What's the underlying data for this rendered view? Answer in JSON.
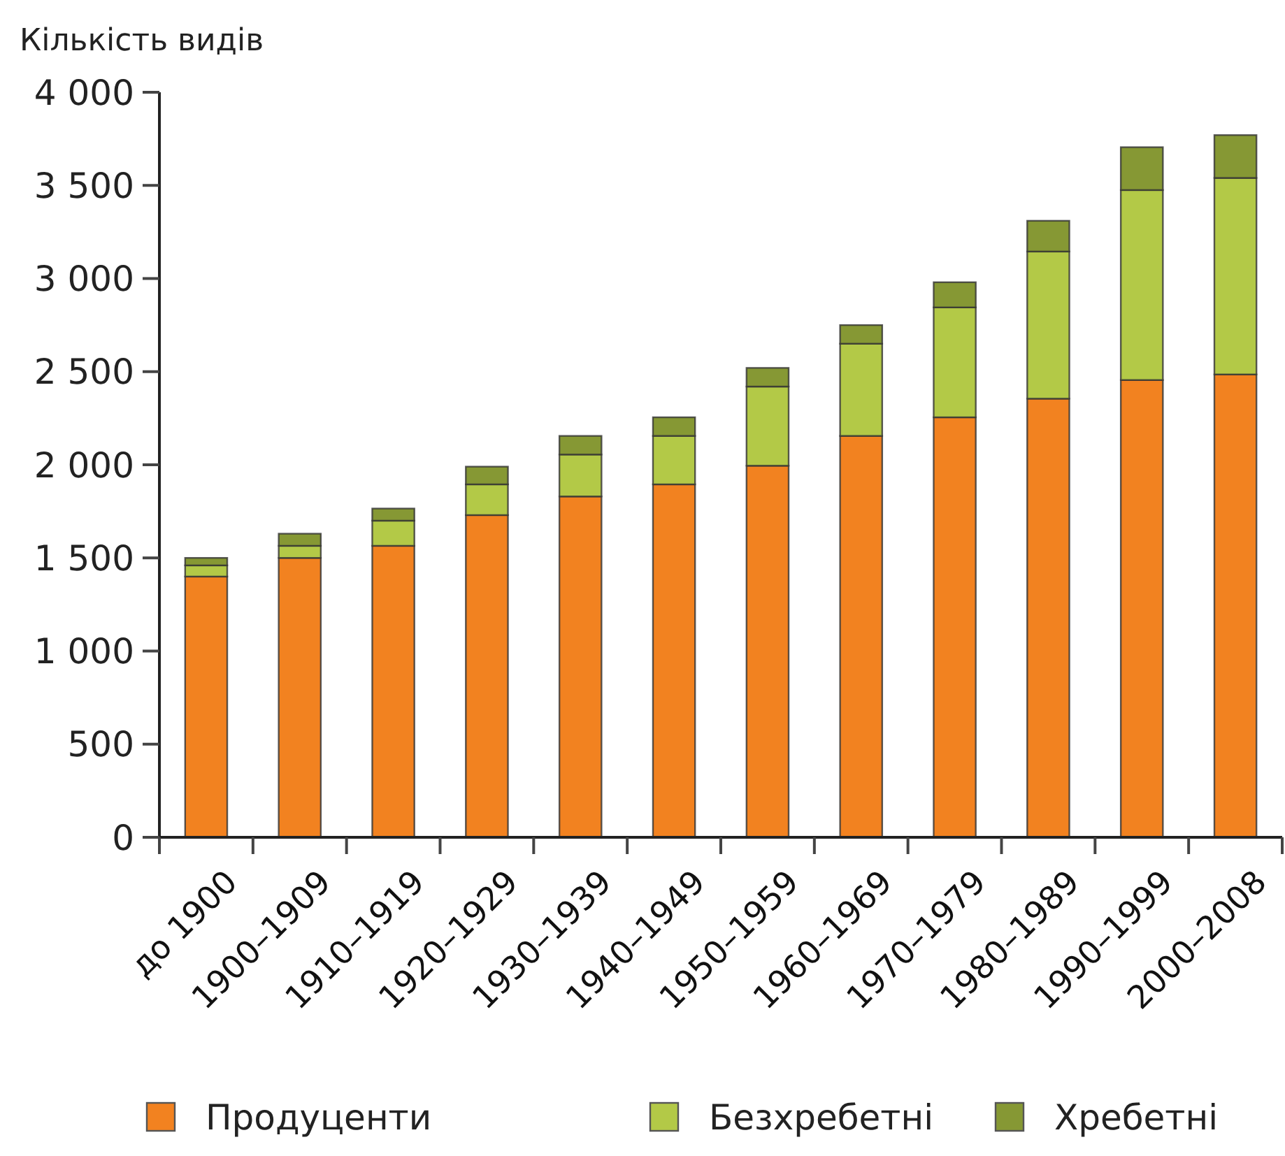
{
  "chart_data": {
    "type": "bar",
    "ylabel": "Кількість видів",
    "stacked": true,
    "legend": "bottom",
    "grid": false,
    "categories": [
      "до 1900",
      "1900–1909",
      "1910–1919",
      "1920–1929",
      "1930–1939",
      "1940–1949",
      "1950–1959",
      "1960–1969",
      "1970–1979",
      "1980–1989",
      "1990–1999",
      "2000–2008"
    ],
    "series": [
      {
        "name": "Продуценти",
        "color": "#f28220",
        "values": [
          1400,
          1500,
          1565,
          1730,
          1830,
          1895,
          1995,
          2155,
          2255,
          2355,
          2455,
          2485
        ]
      },
      {
        "name": "Безхребетні",
        "color": "#b3c947",
        "values": [
          60,
          65,
          135,
          165,
          225,
          260,
          425,
          495,
          590,
          790,
          1020,
          1055
        ]
      },
      {
        "name": "Хребетні",
        "color": "#869834",
        "values": [
          40,
          65,
          65,
          95,
          100,
          100,
          100,
          100,
          135,
          165,
          230,
          230
        ]
      }
    ],
    "ylim": [
      0,
      4000
    ],
    "yticks": [
      {
        "value": 0,
        "label": "0"
      },
      {
        "value": 500,
        "label": "500"
      },
      {
        "value": 1000,
        "label": "1 000"
      },
      {
        "value": 1500,
        "label": "1 500"
      },
      {
        "value": 2000,
        "label": "2 000"
      },
      {
        "value": 2500,
        "label": "2 500"
      },
      {
        "value": 3000,
        "label": "3 000"
      },
      {
        "value": 3500,
        "label": "3 500"
      },
      {
        "value": 4000,
        "label": "4 000"
      }
    ]
  }
}
